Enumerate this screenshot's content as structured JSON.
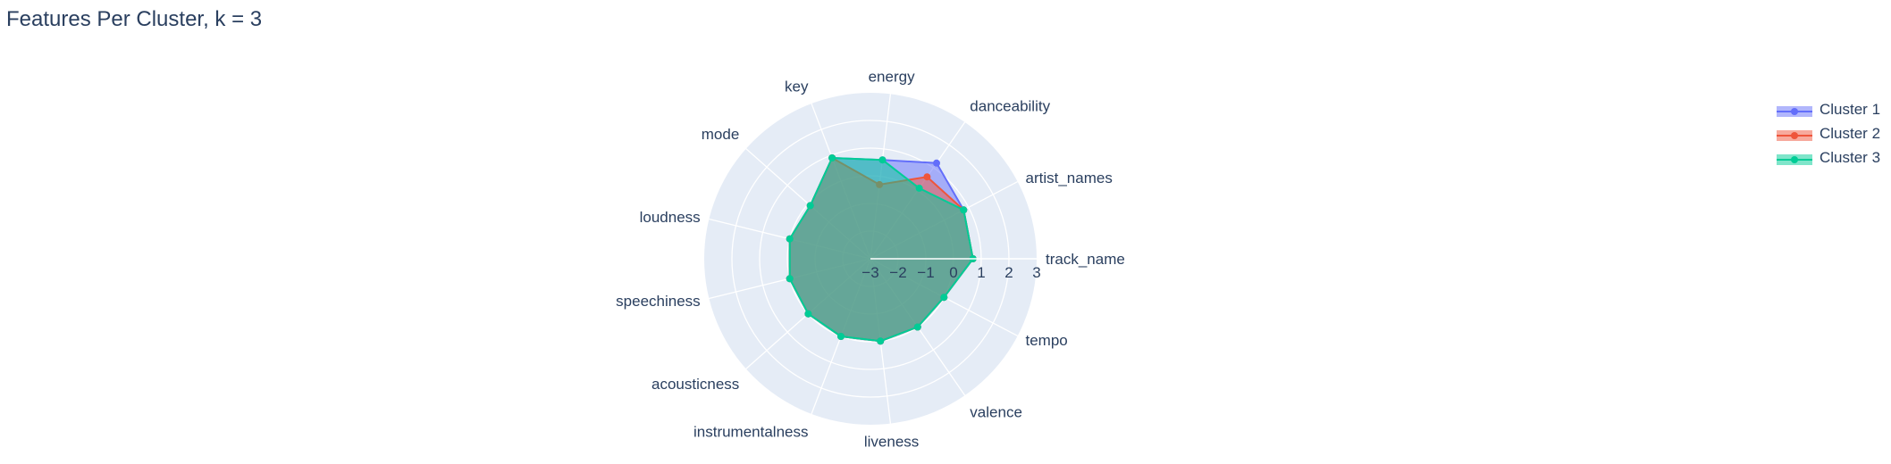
{
  "chart_data": {
    "type": "radar",
    "title": "Features Per Cluster, k = 3",
    "theta": [
      "track_name",
      "artist_names",
      "danceability",
      "energy",
      "key",
      "mode",
      "loudness",
      "speechiness",
      "acousticness",
      "instrumentalness",
      "liveness",
      "valence",
      "tempo"
    ],
    "radial_range": [
      -3,
      3
    ],
    "radial_ticks": [
      "−3",
      "−2",
      "−1",
      "0",
      "1",
      "2",
      "3"
    ],
    "grid": true,
    "legend_position": "top-right",
    "series": [
      {
        "name": "Cluster 1",
        "color": "#636efa",
        "values": [
          0.7,
          0.8,
          1.2,
          0.6,
          0.9,
          -0.1,
          0.0,
          0.0,
          0.0,
          0.0,
          0.0,
          0.0,
          0.0
        ]
      },
      {
        "name": "Cluster 2",
        "color": "#ef553b",
        "values": [
          0.7,
          0.8,
          0.6,
          -0.3,
          0.9,
          -0.1,
          0.0,
          0.0,
          0.0,
          0.0,
          0.0,
          0.0,
          0.0
        ]
      },
      {
        "name": "Cluster 3",
        "color": "#00cc96",
        "values": [
          0.7,
          0.8,
          0.1,
          0.6,
          0.9,
          -0.1,
          0.0,
          0.0,
          0.0,
          0.0,
          0.0,
          0.0,
          0.0
        ]
      }
    ]
  }
}
